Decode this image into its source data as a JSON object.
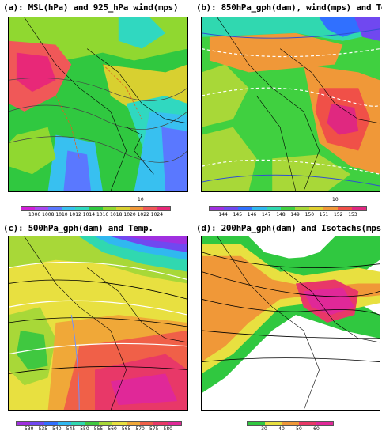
{
  "panels": {
    "a": {
      "title": "(a): MSL(hPa) and 925_hPa wind(mps)",
      "colorbar": [
        "1006",
        "1008",
        "1010",
        "1012",
        "1014",
        "1016",
        "1018",
        "1020",
        "1022",
        "1024"
      ],
      "colors": [
        "#d020d8",
        "#a848f0",
        "#5a78ff",
        "#38c0f0",
        "#30d8c0",
        "#30c840",
        "#90d830",
        "#d8d030",
        "#f09838",
        "#f05858",
        "#e82878"
      ],
      "ref_vector": "10"
    },
    "b": {
      "title": "(b): 850hPa_gph(dam), wind(mps) and Temp.",
      "colorbar": [
        "144",
        "145",
        "146",
        "147",
        "148",
        "149",
        "150",
        "151",
        "152",
        "153"
      ],
      "colors": [
        "#a030e0",
        "#7048f0",
        "#3070ff",
        "#30b8f0",
        "#30d8b0",
        "#40d040",
        "#a8d838",
        "#e0d030",
        "#f09838",
        "#f05048",
        "#e02880"
      ],
      "ref_vector": "10"
    },
    "c": {
      "title": "(c): 500hPa_gph(dam) and Temp.",
      "colorbar": [
        "530",
        "535",
        "540",
        "545",
        "550",
        "555",
        "560",
        "565",
        "570",
        "575",
        "580"
      ],
      "colors": [
        "#a030e0",
        "#7048f0",
        "#3070ff",
        "#30b8f0",
        "#30d8b0",
        "#40c840",
        "#a8d838",
        "#e8e040",
        "#f0a838",
        "#f06048",
        "#e83868",
        "#e02898"
      ]
    },
    "d": {
      "title": "(d): 200hPa_gph(dam) and Isotachs(mps)",
      "colorbar": [
        "30",
        "40",
        "50",
        "60"
      ],
      "colors": [
        "#30c840",
        "#e8e040",
        "#f09838",
        "#e83868",
        "#e02898"
      ]
    }
  }
}
